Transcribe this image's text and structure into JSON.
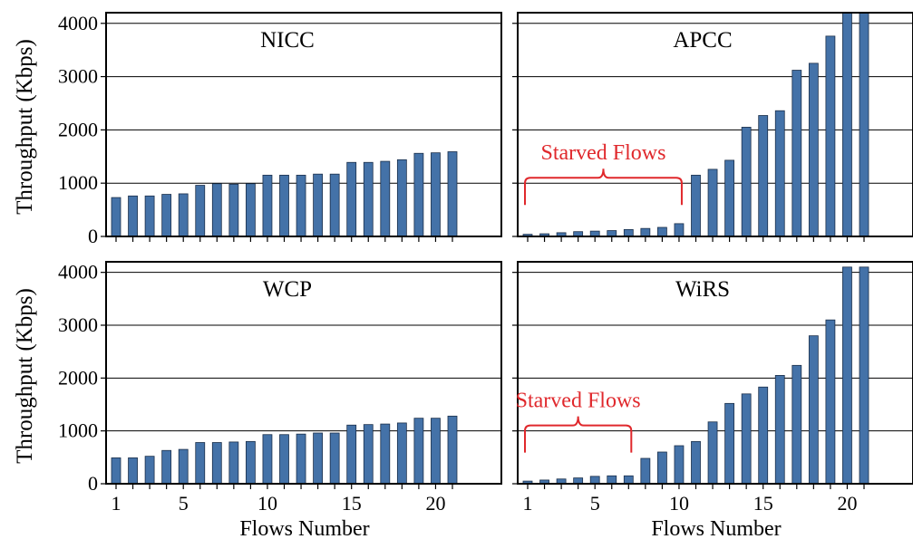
{
  "figure": {
    "ylabel": "Throughput (Kbps)",
    "xlabel": "Flows Number",
    "bar_color": "#4472a8",
    "annotation_color": "#e0282c"
  },
  "chart_data": [
    {
      "type": "bar",
      "title": "NICC",
      "x": [
        1,
        2,
        3,
        4,
        5,
        6,
        7,
        8,
        9,
        10,
        11,
        12,
        13,
        14,
        15,
        16,
        17,
        18,
        19,
        20,
        21
      ],
      "values": [
        730,
        760,
        760,
        790,
        800,
        960,
        990,
        980,
        990,
        1150,
        1150,
        1150,
        1170,
        1170,
        1390,
        1390,
        1410,
        1440,
        1560,
        1570,
        1590
      ],
      "ylim": [
        0,
        4200
      ],
      "yticks": [
        0,
        1000,
        2000,
        3000,
        4000
      ],
      "xticks": [
        1,
        5,
        10,
        15,
        20
      ],
      "grid": "horizontal",
      "annotation": ""
    },
    {
      "type": "bar",
      "title": "APCC",
      "x": [
        1,
        2,
        3,
        4,
        5,
        6,
        7,
        8,
        9,
        10,
        11,
        12,
        13,
        14,
        15,
        16,
        17,
        18,
        19,
        20,
        21
      ],
      "values": [
        40,
        50,
        70,
        90,
        100,
        110,
        130,
        150,
        170,
        240,
        1150,
        1260,
        1430,
        2050,
        2270,
        2360,
        3120,
        3250,
        3760,
        4200,
        4200
      ],
      "ylim": [
        0,
        4200
      ],
      "yticks": [
        0,
        1000,
        2000,
        3000,
        4000
      ],
      "xticks": [
        1,
        5,
        10,
        15,
        20
      ],
      "grid": "horizontal",
      "annotation": "Starved Flows",
      "annotation_span": [
        1,
        10
      ]
    },
    {
      "type": "bar",
      "title": "WCP",
      "x": [
        1,
        2,
        3,
        4,
        5,
        6,
        7,
        8,
        9,
        10,
        11,
        12,
        13,
        14,
        15,
        16,
        17,
        18,
        19,
        20,
        21
      ],
      "values": [
        490,
        490,
        520,
        630,
        650,
        780,
        780,
        790,
        800,
        930,
        930,
        940,
        960,
        960,
        1110,
        1120,
        1130,
        1150,
        1240,
        1240,
        1280
      ],
      "ylim": [
        0,
        4200
      ],
      "yticks": [
        0,
        1000,
        2000,
        3000,
        4000
      ],
      "xticks": [
        1,
        5,
        10,
        15,
        20
      ],
      "grid": "horizontal",
      "annotation": ""
    },
    {
      "type": "bar",
      "title": "WiRS",
      "x": [
        1,
        2,
        3,
        4,
        5,
        6,
        7,
        8,
        9,
        10,
        11,
        12,
        13,
        14,
        15,
        16,
        17,
        18,
        19,
        20,
        21
      ],
      "values": [
        50,
        70,
        90,
        110,
        140,
        150,
        150,
        480,
        600,
        720,
        800,
        1170,
        1520,
        1700,
        1830,
        2050,
        2240,
        2800,
        3100,
        4100,
        4100
      ],
      "ylim": [
        0,
        4200
      ],
      "yticks": [
        0,
        1000,
        2000,
        3000,
        4000
      ],
      "xticks": [
        1,
        5,
        10,
        15,
        20
      ],
      "grid": "horizontal",
      "annotation": "Starved Flows",
      "annotation_span": [
        1,
        7
      ]
    }
  ]
}
